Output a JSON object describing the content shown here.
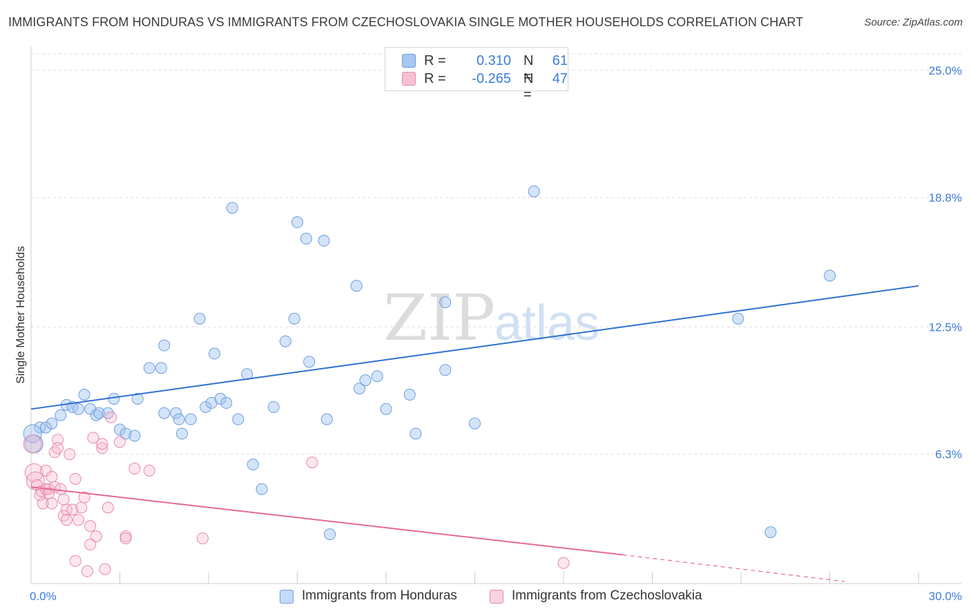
{
  "title": "IMMIGRANTS FROM HONDURAS VS IMMIGRANTS FROM CZECHOSLOVAKIA SINGLE MOTHER HOUSEHOLDS CORRELATION CHART",
  "source": "Source: ZipAtlas.com",
  "watermark": {
    "zip": "ZIP",
    "atlas": "atlas"
  },
  "legend_top": {
    "rows": [
      {
        "r_label": "R =",
        "r_value": "0.310",
        "n_label": "N =",
        "n_value": "61",
        "color": "#a8c8f0",
        "border": "#6b9de0"
      },
      {
        "r_label": "R =",
        "r_value": "-0.265",
        "n_label": "N =",
        "n_value": "47",
        "color": "#f7c0d2",
        "border": "#e888a8"
      }
    ]
  },
  "legend_bottom": {
    "items": [
      {
        "label": "Immigrants from Honduras",
        "color": "#c5daf5",
        "border": "#6b9de0"
      },
      {
        "label": "Immigrants from Czechoslovakia",
        "color": "#f9d3e0",
        "border": "#e888a8"
      }
    ]
  },
  "chart_data": {
    "type": "scatter",
    "title": "IMMIGRANTS FROM HONDURAS VS IMMIGRANTS FROM CZECHOSLOVAKIA SINGLE MOTHER HOUSEHOLDS CORRELATION CHART",
    "xlabel": "",
    "ylabel": "Single Mother Households",
    "xlim": [
      0,
      30
    ],
    "ylim": [
      0,
      25.8
    ],
    "x_tick_labels": [
      "0.0%",
      "30.0%"
    ],
    "y_ticks": [
      6.3,
      12.5,
      18.8,
      25.0
    ],
    "y_tick_labels": [
      "6.3%",
      "12.5%",
      "18.8%",
      "25.0%"
    ],
    "grid": "horizontal dashed",
    "series": [
      {
        "name": "Immigrants from Honduras",
        "color": "#7aaae6",
        "points": [
          [
            0.1,
            6.8
          ],
          [
            0.3,
            7.6
          ],
          [
            0.5,
            7.6
          ],
          [
            0.7,
            7.8
          ],
          [
            1.0,
            8.2
          ],
          [
            1.2,
            8.7
          ],
          [
            1.4,
            8.6
          ],
          [
            1.6,
            8.5
          ],
          [
            1.8,
            9.2
          ],
          [
            2.0,
            8.5
          ],
          [
            2.2,
            8.2
          ],
          [
            2.3,
            8.3
          ],
          [
            2.6,
            8.3
          ],
          [
            2.8,
            9.0
          ],
          [
            3.0,
            7.5
          ],
          [
            3.2,
            7.3
          ],
          [
            3.5,
            7.2
          ],
          [
            3.6,
            9.0
          ],
          [
            4.0,
            10.5
          ],
          [
            4.4,
            10.5
          ],
          [
            4.5,
            8.3
          ],
          [
            4.5,
            11.6
          ],
          [
            4.9,
            8.3
          ],
          [
            5.0,
            8.0
          ],
          [
            5.1,
            7.3
          ],
          [
            5.4,
            8.0
          ],
          [
            5.7,
            12.9
          ],
          [
            5.9,
            8.6
          ],
          [
            6.1,
            8.8
          ],
          [
            6.2,
            11.2
          ],
          [
            6.4,
            9.0
          ],
          [
            6.6,
            8.8
          ],
          [
            6.8,
            18.3
          ],
          [
            7.0,
            8.0
          ],
          [
            7.3,
            10.2
          ],
          [
            7.5,
            5.8
          ],
          [
            7.8,
            4.6
          ],
          [
            8.2,
            8.6
          ],
          [
            8.6,
            11.8
          ],
          [
            8.9,
            12.9
          ],
          [
            9.0,
            17.6
          ],
          [
            9.3,
            16.8
          ],
          [
            9.4,
            10.8
          ],
          [
            9.9,
            16.7
          ],
          [
            10.0,
            8.0
          ],
          [
            10.1,
            2.4
          ],
          [
            11.0,
            14.5
          ],
          [
            11.1,
            9.5
          ],
          [
            11.3,
            9.9
          ],
          [
            11.7,
            10.1
          ],
          [
            12.0,
            8.5
          ],
          [
            12.8,
            9.2
          ],
          [
            13.0,
            7.3
          ],
          [
            14.0,
            10.4
          ],
          [
            14.0,
            13.7
          ],
          [
            15.0,
            7.8
          ],
          [
            17.0,
            19.1
          ],
          [
            23.9,
            12.9
          ],
          [
            25.0,
            2.5
          ],
          [
            27.0,
            15.0
          ],
          [
            0.05,
            7.3
          ]
        ]
      },
      {
        "name": "Immigrants from Czechoslovakia",
        "color": "#f0a0bc",
        "points": [
          [
            0.1,
            5.4
          ],
          [
            0.15,
            5.0
          ],
          [
            0.2,
            4.8
          ],
          [
            0.3,
            4.3
          ],
          [
            0.35,
            4.5
          ],
          [
            0.4,
            3.9
          ],
          [
            0.5,
            4.6
          ],
          [
            0.5,
            5.5
          ],
          [
            0.6,
            4.6
          ],
          [
            0.6,
            4.4
          ],
          [
            0.7,
            5.2
          ],
          [
            0.8,
            6.4
          ],
          [
            0.8,
            4.7
          ],
          [
            0.9,
            7.0
          ],
          [
            0.9,
            6.6
          ],
          [
            1.1,
            3.3
          ],
          [
            1.1,
            4.1
          ],
          [
            1.2,
            3.6
          ],
          [
            1.2,
            3.1
          ],
          [
            1.3,
            6.3
          ],
          [
            1.4,
            3.6
          ],
          [
            1.5,
            5.1
          ],
          [
            1.5,
            1.1
          ],
          [
            1.6,
            3.1
          ],
          [
            1.7,
            3.7
          ],
          [
            1.9,
            0.6
          ],
          [
            2.0,
            2.8
          ],
          [
            2.0,
            1.9
          ],
          [
            2.1,
            7.1
          ],
          [
            2.2,
            2.3
          ],
          [
            2.4,
            6.6
          ],
          [
            2.4,
            6.8
          ],
          [
            2.5,
            0.7
          ],
          [
            2.6,
            3.7
          ],
          [
            2.7,
            8.1
          ],
          [
            3.0,
            6.9
          ],
          [
            3.2,
            2.3
          ],
          [
            3.2,
            2.2
          ],
          [
            3.5,
            5.6
          ],
          [
            4.0,
            5.5
          ],
          [
            5.8,
            2.2
          ],
          [
            9.5,
            5.9
          ],
          [
            18.0,
            1.0
          ],
          [
            0.05,
            6.8
          ],
          [
            1.0,
            4.6
          ],
          [
            0.7,
            3.9
          ],
          [
            1.8,
            4.2
          ]
        ]
      }
    ],
    "trendlines": [
      {
        "series": "Immigrants from Honduras",
        "x": [
          0,
          30
        ],
        "y": [
          8.5,
          14.5
        ],
        "color": "#2f6fce"
      },
      {
        "series": "Immigrants from Czechoslovakia",
        "x": [
          0,
          20
        ],
        "y": [
          4.7,
          1.4
        ],
        "x_dashed": [
          20,
          27.5
        ],
        "y_dashed": [
          1.4,
          0.1
        ],
        "color": "#e4699b"
      }
    ]
  }
}
